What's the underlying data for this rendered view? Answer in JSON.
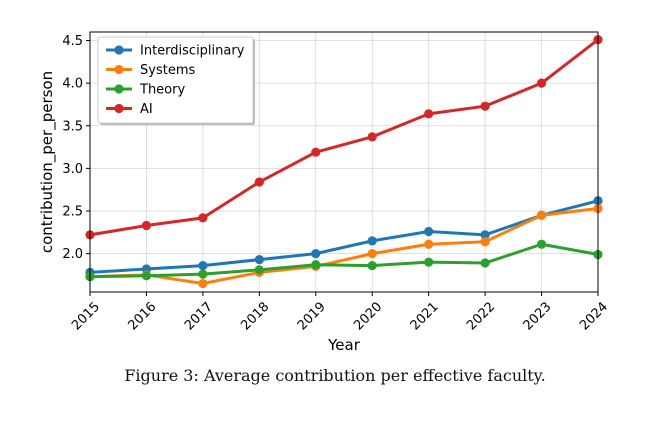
{
  "caption": "Figure 3: Average contribution per effective faculty.",
  "chart_data": {
    "type": "line",
    "title": "",
    "xlabel": "Year",
    "ylabel": "contribution_per_person",
    "x": [
      2015,
      2016,
      2017,
      2018,
      2019,
      2020,
      2021,
      2022,
      2023,
      2024
    ],
    "xticks": [
      "2015",
      "2016",
      "2017",
      "2018",
      "2019",
      "2020",
      "2021",
      "2022",
      "2023",
      "2024"
    ],
    "yticks": [
      "2.0",
      "2.5",
      "3.0",
      "3.5",
      "4.0",
      "4.5"
    ],
    "ylim": [
      1.55,
      4.6
    ],
    "xlim": [
      2015,
      2024
    ],
    "grid": true,
    "legend_position": "upper-left",
    "series": [
      {
        "name": "Interdisciplinary",
        "color": "#1f77b4",
        "values": [
          1.78,
          1.82,
          1.86,
          1.93,
          2.0,
          2.15,
          2.26,
          2.22,
          2.45,
          2.62
        ]
      },
      {
        "name": "Systems",
        "color": "#ff7f0e",
        "values": [
          1.73,
          1.75,
          1.65,
          1.78,
          1.85,
          2.0,
          2.11,
          2.14,
          2.45,
          2.53
        ]
      },
      {
        "name": "Theory",
        "color": "#2ca02c",
        "values": [
          1.73,
          1.74,
          1.76,
          1.81,
          1.87,
          1.86,
          1.9,
          1.89,
          2.11,
          1.99
        ]
      },
      {
        "name": "AI",
        "color": "#d62728",
        "values": [
          2.22,
          2.33,
          2.42,
          2.84,
          3.19,
          3.37,
          3.64,
          3.73,
          4.0,
          4.51
        ]
      }
    ]
  }
}
